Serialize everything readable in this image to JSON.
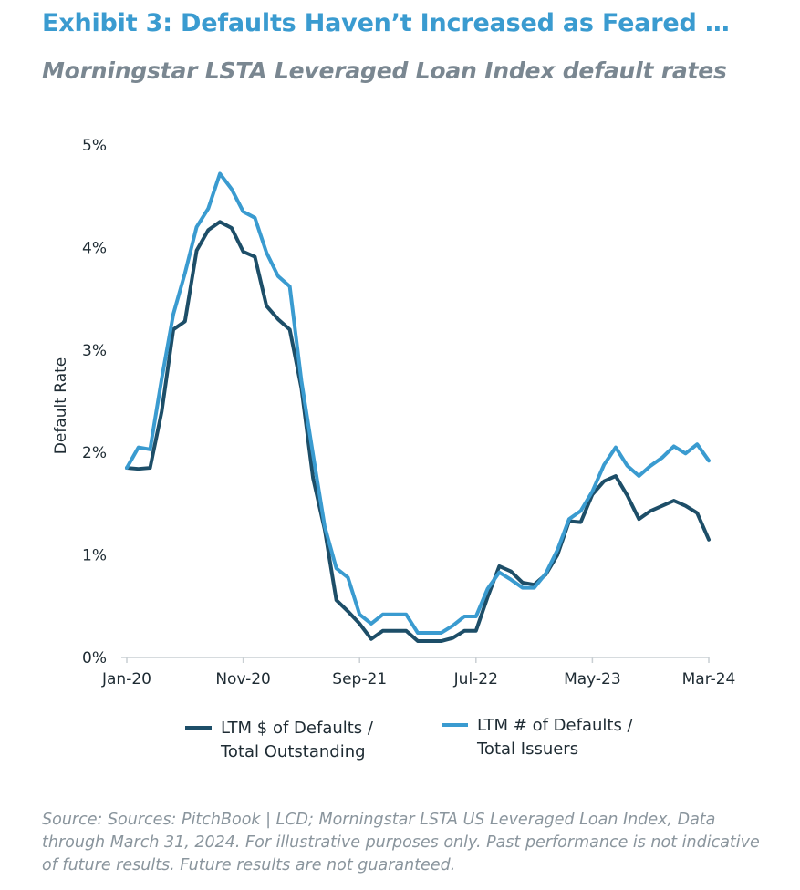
{
  "header": {
    "title": "Exhibit 3: Defaults Haven’t Increased as Feared …",
    "subtitle": "Morningstar LSTA Leveraged Loan Index default rates"
  },
  "footer": {
    "source": "Source: Sources: PitchBook | LCD; Morningstar LSTA US Leveraged Loan Index, Data through March 31, 2024. For illustrative purposes only. Past performance is not indicative of future results. Future results are not guaranteed."
  },
  "chart_data": {
    "type": "line",
    "ylabel": "Default Rate",
    "xlabel": "",
    "ylim": [
      0,
      5
    ],
    "y_ticks": [
      0,
      1,
      2,
      3,
      4,
      5
    ],
    "y_tick_labels": [
      "0%",
      "1%",
      "2%",
      "3%",
      "4%",
      "5%"
    ],
    "x_tick_index": [
      0,
      10,
      20,
      30,
      40,
      50
    ],
    "x_tick_labels": [
      "Jan-20",
      "Nov-20",
      "Sep-21",
      "Jul-22",
      "May-23",
      "Mar-24"
    ],
    "grid": false,
    "legend_position": "bottom",
    "series": [
      {
        "name_line1": "LTM $ of Defaults /",
        "name_line2": "Total Outstanding",
        "color": "#1d4e68",
        "values": [
          1.85,
          1.84,
          1.85,
          2.4,
          3.2,
          3.28,
          3.97,
          4.17,
          4.25,
          4.19,
          3.96,
          3.91,
          3.43,
          3.3,
          3.2,
          2.63,
          1.75,
          1.25,
          0.56,
          0.45,
          0.33,
          0.18,
          0.26,
          0.26,
          0.26,
          0.16,
          0.16,
          0.16,
          0.19,
          0.26,
          0.26,
          0.59,
          0.89,
          0.84,
          0.73,
          0.71,
          0.81,
          1.0,
          1.33,
          1.32,
          1.59,
          1.72,
          1.77,
          1.58,
          1.35,
          1.43,
          1.48,
          1.53,
          1.48,
          1.41,
          1.15
        ]
      },
      {
        "name_line1": "LTM # of Defaults /",
        "name_line2": "Total Issuers",
        "color": "#3a9bd0",
        "values": [
          1.85,
          2.05,
          2.03,
          2.72,
          3.35,
          3.75,
          4.2,
          4.38,
          4.72,
          4.57,
          4.35,
          4.29,
          3.95,
          3.72,
          3.62,
          2.7,
          1.98,
          1.28,
          0.87,
          0.78,
          0.42,
          0.33,
          0.42,
          0.42,
          0.42,
          0.24,
          0.24,
          0.24,
          0.31,
          0.4,
          0.4,
          0.67,
          0.83,
          0.76,
          0.68,
          0.68,
          0.82,
          1.05,
          1.35,
          1.43,
          1.62,
          1.88,
          2.05,
          1.87,
          1.77,
          1.87,
          1.95,
          2.06,
          1.99,
          2.08,
          1.92
        ]
      }
    ]
  }
}
